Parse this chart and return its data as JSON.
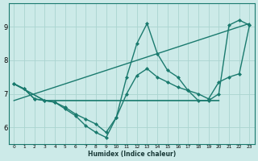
{
  "xlabel": "Humidex (Indice chaleur)",
  "xlim": [
    -0.5,
    23.5
  ],
  "ylim": [
    5.5,
    9.7
  ],
  "yticks": [
    6,
    7,
    8,
    9
  ],
  "xticks": [
    0,
    1,
    2,
    3,
    4,
    5,
    6,
    7,
    8,
    9,
    10,
    11,
    12,
    13,
    14,
    15,
    16,
    17,
    18,
    19,
    20,
    21,
    22,
    23
  ],
  "bg_color": "#cceae8",
  "grid_color": "#aad4d0",
  "line_color": "#1a7a6e",
  "lines": [
    {
      "x": [
        0,
        1,
        2,
        3,
        4,
        5,
        6,
        7,
        8,
        9,
        10,
        11,
        12,
        13,
        14,
        15,
        16,
        17,
        18,
        19,
        20,
        21,
        22,
        23
      ],
      "y": [
        7.3,
        7.15,
        6.85,
        6.8,
        6.75,
        6.6,
        6.4,
        6.25,
        6.1,
        5.85,
        6.3,
        7.5,
        8.5,
        9.1,
        8.2,
        7.7,
        7.5,
        7.1,
        6.8,
        6.8,
        7.0,
        9.05,
        9.2,
        9.05
      ],
      "marker": "D",
      "markersize": 2.0,
      "linewidth": 1.0
    },
    {
      "x": [
        0,
        3,
        10,
        20
      ],
      "y": [
        7.3,
        6.8,
        6.8,
        6.8
      ],
      "marker": null,
      "markersize": 0,
      "linewidth": 1.2
    },
    {
      "x": [
        0,
        23
      ],
      "y": [
        6.8,
        9.1
      ],
      "marker": null,
      "markersize": 0,
      "linewidth": 1.0
    },
    {
      "x": [
        0,
        1,
        2,
        3,
        4,
        5,
        6,
        7,
        8,
        9,
        10,
        11,
        12,
        13,
        14,
        15,
        16,
        17,
        18,
        19,
        20,
        21,
        22,
        23
      ],
      "y": [
        7.3,
        7.15,
        6.85,
        6.8,
        6.75,
        6.55,
        6.35,
        6.05,
        5.85,
        5.7,
        6.3,
        7.0,
        7.55,
        7.75,
        7.5,
        7.35,
        7.2,
        7.1,
        7.0,
        6.85,
        7.35,
        7.5,
        7.6,
        9.05
      ],
      "marker": "D",
      "markersize": 2.0,
      "linewidth": 1.0
    }
  ]
}
